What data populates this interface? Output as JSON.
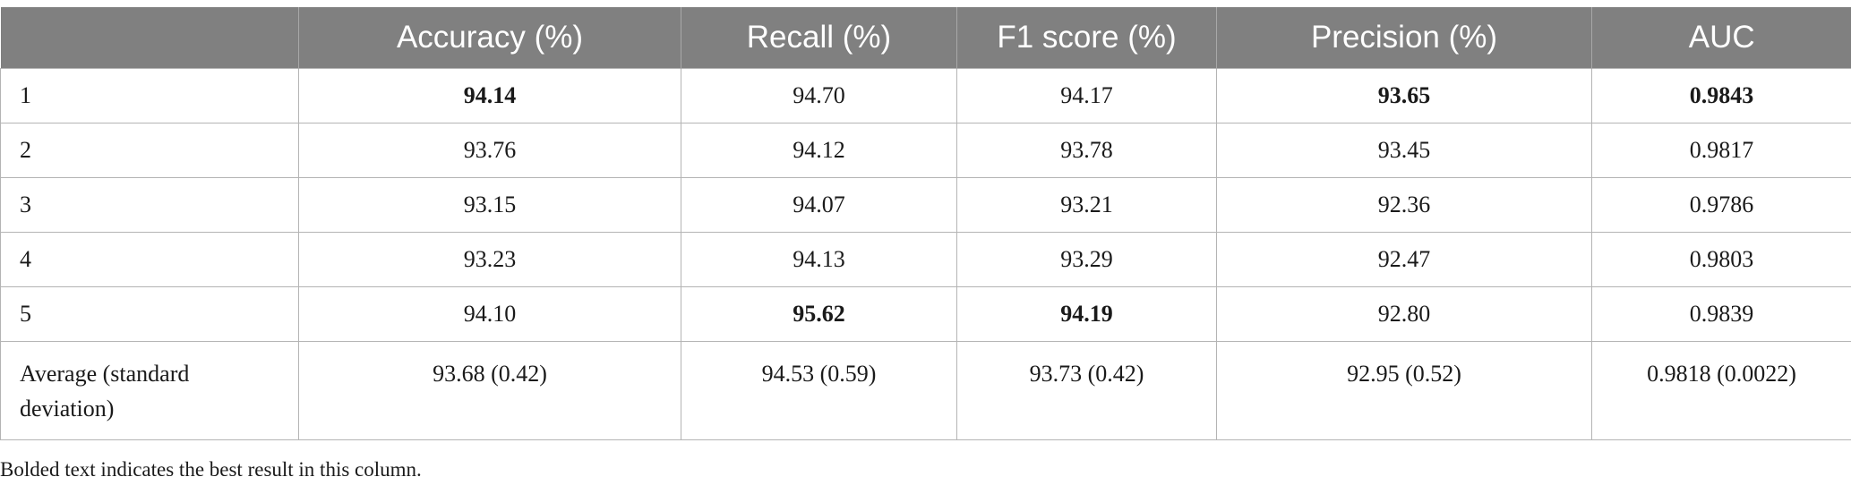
{
  "table": {
    "headers": [
      "",
      "Accuracy (%)",
      "Recall (%)",
      "F1 score (%)",
      "Precision (%)",
      "AUC"
    ],
    "rows": [
      {
        "label": "1",
        "values": [
          "94.14",
          "94.70",
          "94.17",
          "93.65",
          "0.9843"
        ],
        "bold": [
          true,
          false,
          false,
          true,
          true
        ]
      },
      {
        "label": "2",
        "values": [
          "93.76",
          "94.12",
          "93.78",
          "93.45",
          "0.9817"
        ],
        "bold": [
          false,
          false,
          false,
          false,
          false
        ]
      },
      {
        "label": "3",
        "values": [
          "93.15",
          "94.07",
          "93.21",
          "92.36",
          "0.9786"
        ],
        "bold": [
          false,
          false,
          false,
          false,
          false
        ]
      },
      {
        "label": "4",
        "values": [
          "93.23",
          "94.13",
          "93.29",
          "92.47",
          "0.9803"
        ],
        "bold": [
          false,
          false,
          false,
          false,
          false
        ]
      },
      {
        "label": "5",
        "values": [
          "94.10",
          "95.62",
          "94.19",
          "92.80",
          "0.9839"
        ],
        "bold": [
          false,
          true,
          true,
          false,
          false
        ]
      },
      {
        "label": "Average (standard deviation)",
        "values": [
          "93.68 (0.42)",
          "94.53 (0.59)",
          "93.73 (0.42)",
          "92.95 (0.52)",
          "0.9818 (0.0022)"
        ],
        "bold": [
          false,
          false,
          false,
          false,
          false
        ]
      }
    ]
  },
  "footnote": "Bolded text indicates the best result in this column."
}
